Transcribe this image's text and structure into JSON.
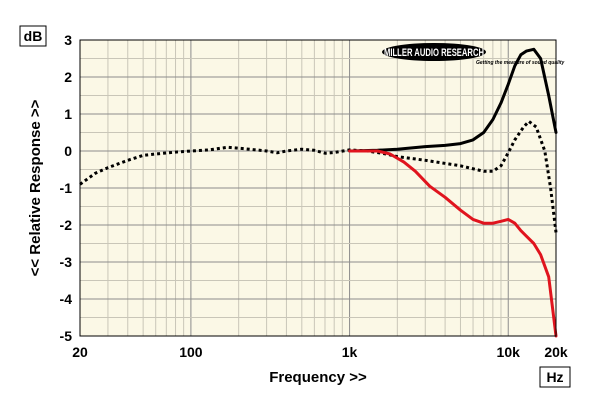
{
  "chart_data": {
    "type": "line",
    "title": "",
    "xlabel": "Frequency >>",
    "ylabel": "<< Relative Response >>",
    "x_unit": "Hz",
    "y_unit": "dB",
    "x_scale": "log",
    "xlim": [
      20,
      20000
    ],
    "ylim": [
      -5,
      3
    ],
    "x_ticks": [
      {
        "value": 20,
        "label": "20"
      },
      {
        "value": 100,
        "label": "100"
      },
      {
        "value": 1000,
        "label": "1k"
      },
      {
        "value": 10000,
        "label": "10k"
      },
      {
        "value": 20000,
        "label": "20k"
      }
    ],
    "y_ticks": [
      {
        "value": 3,
        "label": "3"
      },
      {
        "value": 2,
        "label": "2"
      },
      {
        "value": 1,
        "label": "1"
      },
      {
        "value": 0,
        "label": "0"
      },
      {
        "value": -1,
        "label": "-1"
      },
      {
        "value": -2,
        "label": "-2"
      },
      {
        "value": -3,
        "label": "-3"
      },
      {
        "value": -4,
        "label": "-4"
      },
      {
        "value": -5,
        "label": "-5"
      }
    ],
    "grid": true,
    "logo": {
      "main": "MILLER AUDIO RESEARCH",
      "tagline": "Getting the measure of sound quality"
    },
    "series": [
      {
        "color": "#000000",
        "style": "dotted",
        "points": [
          [
            20,
            -0.9
          ],
          [
            25,
            -0.6
          ],
          [
            30,
            -0.45
          ],
          [
            40,
            -0.25
          ],
          [
            50,
            -0.12
          ],
          [
            60,
            -0.08
          ],
          [
            80,
            -0.03
          ],
          [
            100,
            0.0
          ],
          [
            130,
            0.03
          ],
          [
            170,
            0.1
          ],
          [
            220,
            0.06
          ],
          [
            300,
            0.0
          ],
          [
            350,
            -0.05
          ],
          [
            400,
            0.0
          ],
          [
            500,
            0.05
          ],
          [
            600,
            0.02
          ],
          [
            700,
            -0.06
          ],
          [
            800,
            -0.04
          ],
          [
            1000,
            0.03
          ],
          [
            1300,
            0.0
          ],
          [
            1700,
            -0.08
          ],
          [
            2000,
            -0.15
          ],
          [
            3000,
            -0.25
          ],
          [
            5000,
            -0.4
          ],
          [
            7000,
            -0.55
          ],
          [
            8000,
            -0.55
          ],
          [
            9000,
            -0.4
          ],
          [
            10000,
            -0.05
          ],
          [
            11000,
            0.3
          ],
          [
            12500,
            0.65
          ],
          [
            13500,
            0.8
          ],
          [
            15000,
            0.65
          ],
          [
            17000,
            0.0
          ],
          [
            18500,
            -1.0
          ],
          [
            20000,
            -2.2
          ]
        ]
      },
      {
        "color": "#000000",
        "style": "solid",
        "points": [
          [
            1000,
            0.0
          ],
          [
            1500,
            0.02
          ],
          [
            2000,
            0.05
          ],
          [
            3000,
            0.12
          ],
          [
            4000,
            0.15
          ],
          [
            5000,
            0.2
          ],
          [
            6000,
            0.3
          ],
          [
            7000,
            0.5
          ],
          [
            8000,
            0.85
          ],
          [
            9000,
            1.3
          ],
          [
            10000,
            1.8
          ],
          [
            11000,
            2.3
          ],
          [
            12000,
            2.6
          ],
          [
            13000,
            2.7
          ],
          [
            14500,
            2.75
          ],
          [
            16000,
            2.5
          ],
          [
            18000,
            1.5
          ],
          [
            20000,
            0.5
          ]
        ]
      },
      {
        "color": "#e0141e",
        "style": "solid",
        "points": [
          [
            1000,
            0.0
          ],
          [
            1500,
            0.0
          ],
          [
            1800,
            -0.08
          ],
          [
            2200,
            -0.3
          ],
          [
            2600,
            -0.55
          ],
          [
            3200,
            -0.95
          ],
          [
            4000,
            -1.25
          ],
          [
            5000,
            -1.6
          ],
          [
            6000,
            -1.85
          ],
          [
            7000,
            -1.95
          ],
          [
            8000,
            -1.95
          ],
          [
            9000,
            -1.9
          ],
          [
            10000,
            -1.85
          ],
          [
            11000,
            -1.95
          ],
          [
            12000,
            -2.15
          ],
          [
            13000,
            -2.3
          ],
          [
            14500,
            -2.5
          ],
          [
            16000,
            -2.8
          ],
          [
            18000,
            -3.4
          ],
          [
            20000,
            -5.0
          ]
        ]
      }
    ]
  }
}
